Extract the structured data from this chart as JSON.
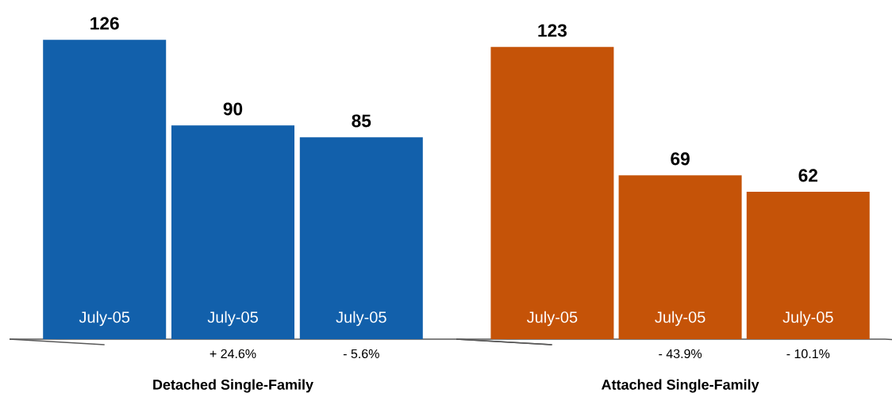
{
  "chart_data": [
    {
      "type": "bar",
      "categories": [
        "July-05",
        "July-05",
        "July-05"
      ],
      "values": [
        126,
        90,
        85
      ],
      "color": "#1260ab",
      "data_labels": true,
      "xlabel": "Detached Single-Family",
      "annotations": [
        "+ 24.6%",
        "- 5.6%"
      ]
    },
    {
      "type": "bar",
      "categories": [
        "July-05",
        "July-05",
        "July-05"
      ],
      "values": [
        123,
        69,
        62
      ],
      "color": "#c55308",
      "data_labels": true,
      "xlabel": "Attached Single-Family",
      "annotations": [
        "- 43.9%",
        "- 10.1%"
      ]
    }
  ]
}
